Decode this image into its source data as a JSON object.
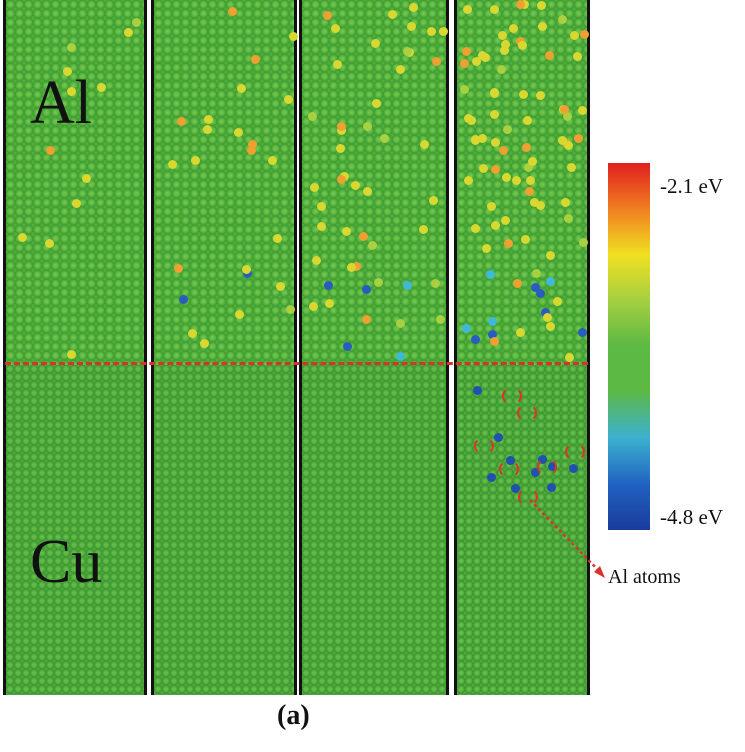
{
  "labels": {
    "top": "Al",
    "bottom": "Cu"
  },
  "colorbar": {
    "max_label": "-2.1 eV",
    "min_label": "-4.8 eV",
    "colors": [
      "#e02020",
      "#f0e020",
      "#5cb944",
      "#3cb0d0",
      "#1a3c9c"
    ]
  },
  "annotation": "Al atoms",
  "caption": "(a)",
  "interface_line_color": "#d8332a"
}
